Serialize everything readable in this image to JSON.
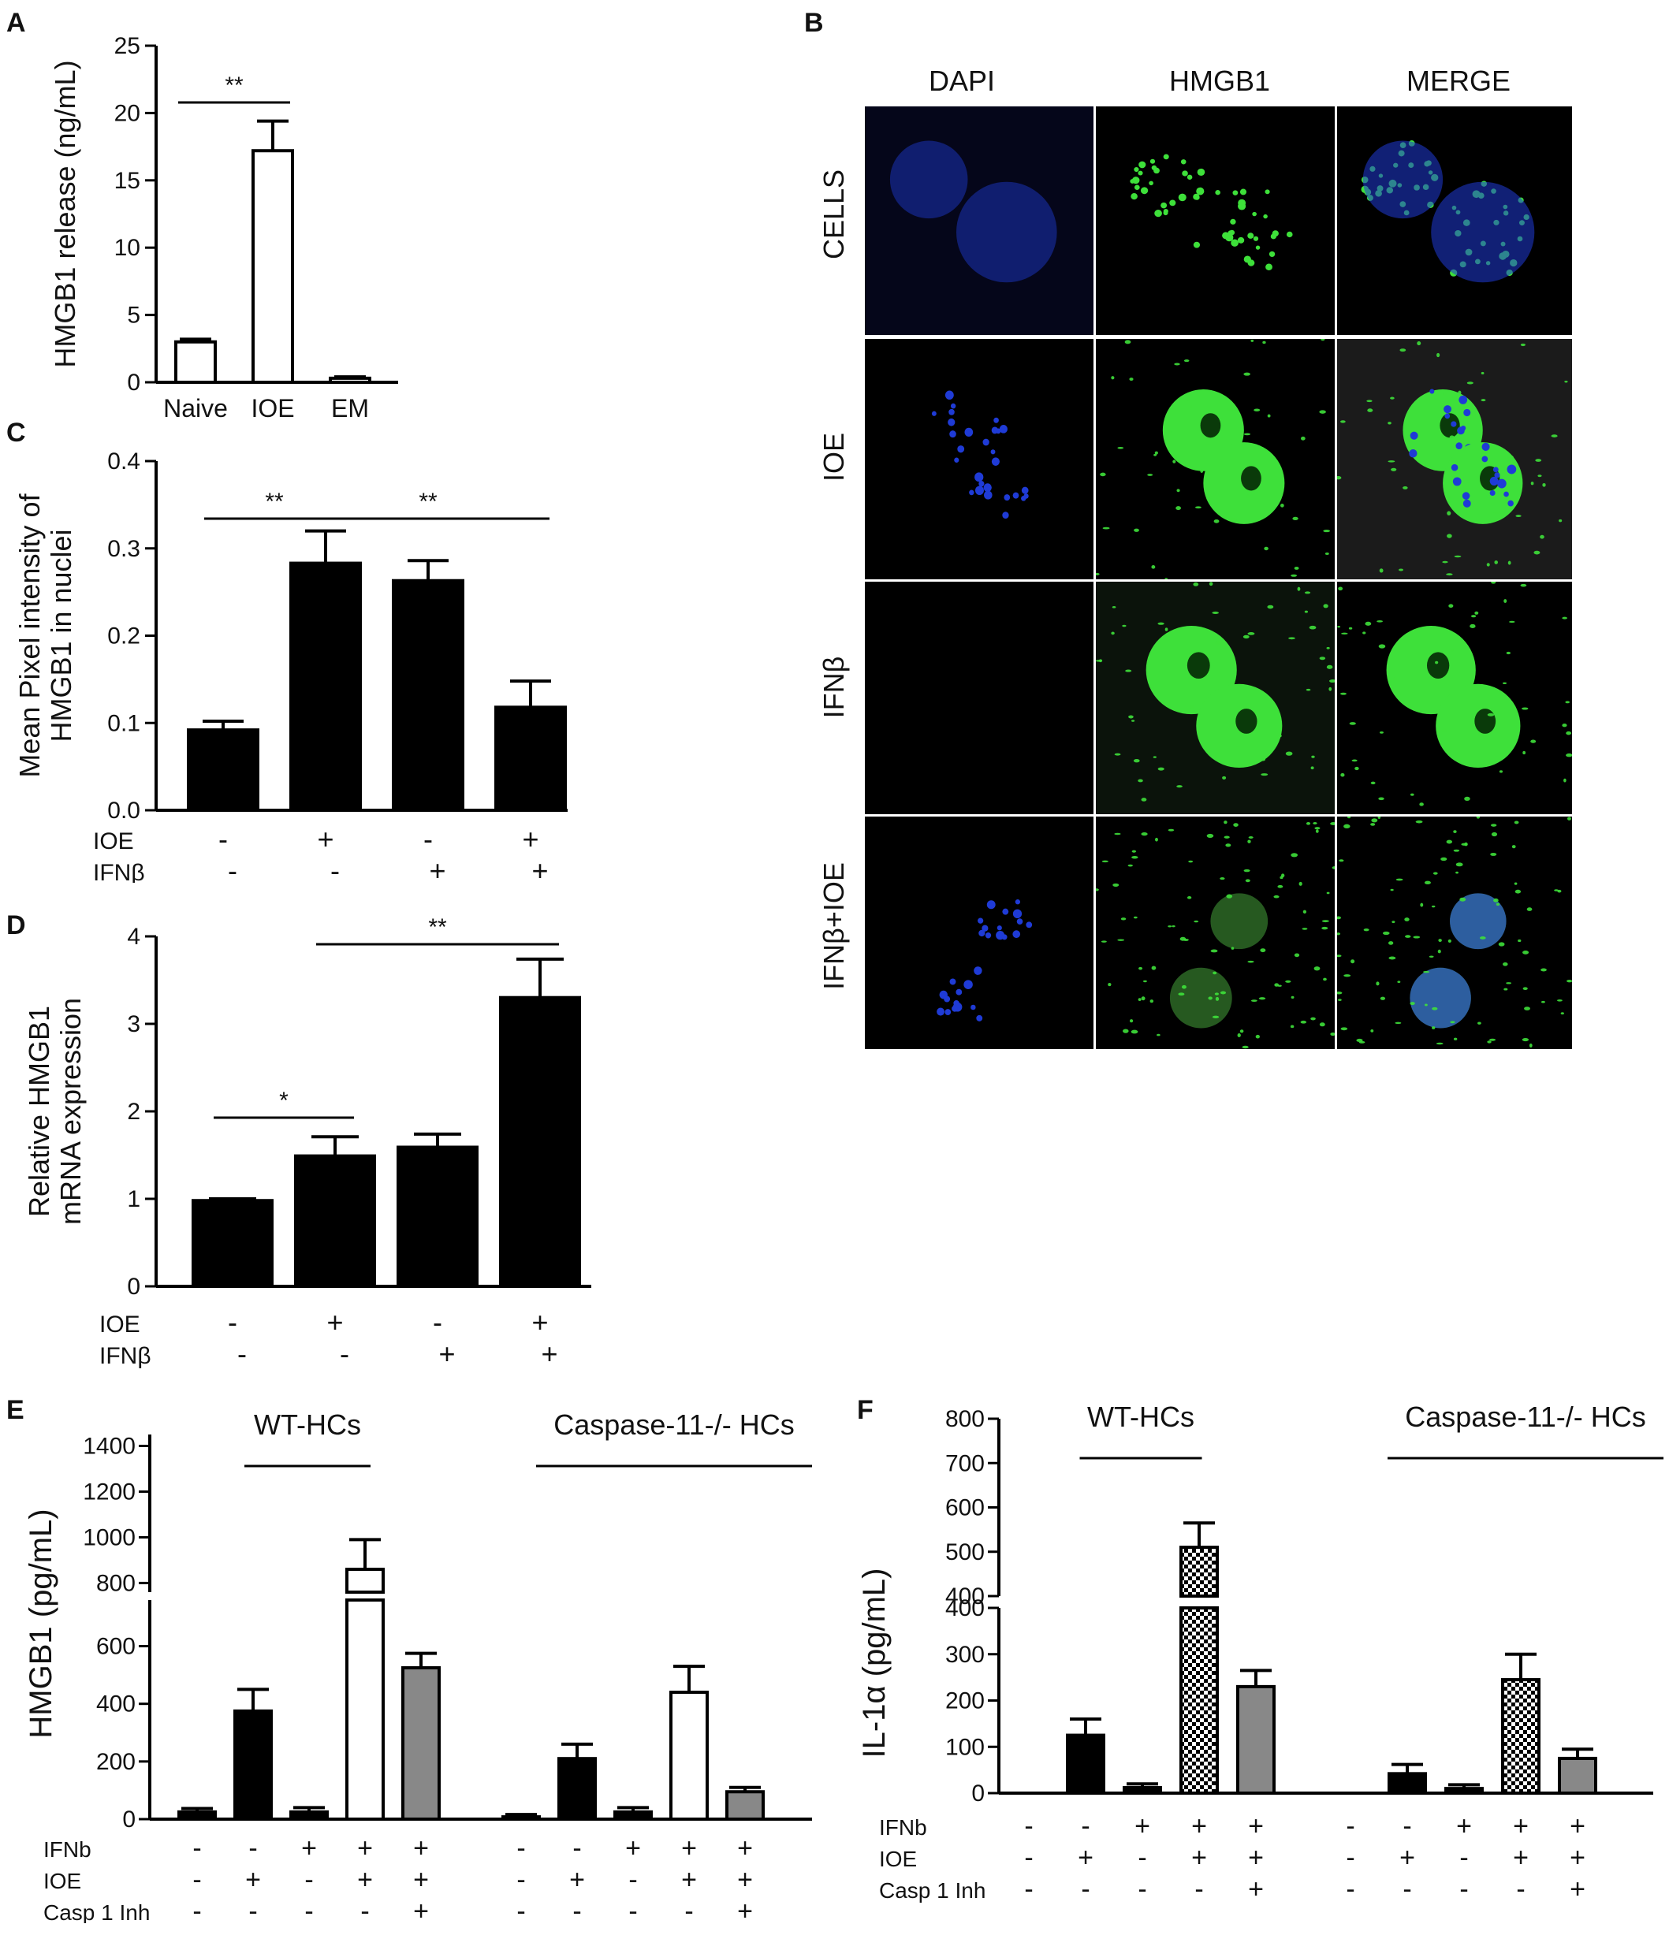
{
  "panel_letters": {
    "A": "A",
    "B": "B",
    "C": "C",
    "D": "D",
    "E": "E",
    "F": "F"
  },
  "microscopy": {
    "column_headers": [
      "DAPI",
      "HMGB1",
      "MERGE"
    ],
    "row_labels": [
      "CELLS",
      "IOE",
      "IFNβ",
      "IFNβ+IOE"
    ],
    "colors": {
      "dapi": "#1f3bd6",
      "hmgb1": "#3ee03a"
    }
  },
  "chart_data": [
    {
      "panel": "A",
      "type": "bar",
      "categories": [
        "Naive",
        "IOE",
        "EM"
      ],
      "values": [
        3.0,
        17.2,
        0.3
      ],
      "errors": [
        0.2,
        2.2,
        0.1
      ],
      "ylabel": "HMGB1 release (ng/mL)",
      "ylim": [
        0,
        25
      ],
      "yticks": [
        "0",
        "5",
        "10",
        "15",
        "20",
        "25"
      ],
      "fill": "#ffffff",
      "significance": [
        {
          "from": 0,
          "to": 1,
          "label": "**"
        }
      ]
    },
    {
      "panel": "C",
      "type": "bar",
      "categories": [
        "",
        "",
        "",
        ""
      ],
      "values": [
        0.092,
        0.283,
        0.263,
        0.118
      ],
      "errors": [
        0.01,
        0.037,
        0.023,
        0.03
      ],
      "ylabel_lines": [
        "Mean Pixel intensity of",
        "HMGB1 in nuclei"
      ],
      "ylim": [
        0,
        0.4
      ],
      "yticks": [
        "0.0",
        "0.1",
        "0.2",
        "0.3",
        "0.4"
      ],
      "fill": "#000000",
      "conditions": [
        {
          "name": "IOE",
          "values": [
            "-",
            "+",
            "-",
            "+"
          ]
        },
        {
          "name": "IFNβ",
          "values": [
            "-",
            "-",
            "+",
            "+"
          ]
        }
      ],
      "significance": [
        {
          "from": 0,
          "to": 1,
          "label": "**"
        },
        {
          "from": 1,
          "to": 3,
          "label": "**"
        }
      ]
    },
    {
      "panel": "D",
      "type": "bar",
      "categories": [
        "",
        "",
        "",
        ""
      ],
      "values": [
        0.98,
        1.49,
        1.59,
        3.3
      ],
      "errors": [
        0.02,
        0.22,
        0.15,
        0.44
      ],
      "ylabel_lines": [
        "Relative HMGB1",
        "mRNA expression"
      ],
      "ylim": [
        0,
        4
      ],
      "yticks": [
        "0",
        "1",
        "2",
        "3",
        "4"
      ],
      "fill": "#000000",
      "conditions": [
        {
          "name": "IOE",
          "values": [
            "-",
            "+",
            "-",
            "+"
          ]
        },
        {
          "name": "IFNβ",
          "values": [
            "-",
            "-",
            "+",
            "+"
          ]
        }
      ],
      "significance": [
        {
          "from": 0,
          "to": 1,
          "label": "*"
        },
        {
          "from": 1,
          "to": 3,
          "label": "**"
        }
      ]
    },
    {
      "panel": "E",
      "type": "bar",
      "ylabel": "HMGB1 (pg/mL)",
      "axis_break": true,
      "lower_range": [
        0,
        760
      ],
      "lower_ticks": [
        "0",
        "200",
        "400",
        "600"
      ],
      "upper_range": [
        760,
        1450
      ],
      "upper_ticks": [
        "800",
        "1000",
        "1200",
        "1400"
      ],
      "group_labels": [
        "WT-HCs",
        "Caspase-11-/- HCs"
      ],
      "values": [
        25,
        375,
        25,
        860,
        525,
        8,
        210,
        25,
        440,
        95
      ],
      "errors": [
        12,
        75,
        15,
        130,
        50,
        8,
        50,
        15,
        90,
        15
      ],
      "fills": [
        "black",
        "black",
        "black",
        "white",
        "gray",
        "black",
        "black",
        "black",
        "white",
        "gray"
      ],
      "conditions": [
        {
          "name": "IFNb",
          "values": [
            "-",
            "-",
            "+",
            "+",
            "+",
            "-",
            "-",
            "+",
            "+",
            "+"
          ]
        },
        {
          "name": "IOE",
          "values": [
            "-",
            "+",
            "-",
            "+",
            "+",
            "-",
            "+",
            "-",
            "+",
            "+"
          ]
        },
        {
          "name": "Casp 1 Inh",
          "values": [
            "-",
            "-",
            "-",
            "-",
            "+",
            "-",
            "-",
            "-",
            "-",
            "+"
          ]
        }
      ]
    },
    {
      "panel": "F",
      "type": "bar",
      "ylabel": "IL-1α (pg/mL)",
      "axis_break": true,
      "lower_range": [
        0,
        400
      ],
      "lower_ticks": [
        "0",
        "100",
        "200",
        "300",
        "400"
      ],
      "upper_range": [
        400,
        800
      ],
      "upper_ticks": [
        "400",
        "500",
        "600",
        "700",
        "800"
      ],
      "group_labels": [
        "WT-HCs",
        "Caspase-11-/- HCs"
      ],
      "values": [
        0,
        125,
        12,
        510,
        230,
        0,
        42,
        10,
        245,
        75
      ],
      "errors": [
        0,
        35,
        8,
        55,
        35,
        0,
        20,
        8,
        55,
        20
      ],
      "fills": [
        "none",
        "black",
        "black",
        "checker",
        "gray",
        "none",
        "black",
        "black",
        "checker",
        "gray"
      ],
      "conditions": [
        {
          "name": "IFNb",
          "values": [
            "-",
            "-",
            "+",
            "+",
            "+",
            "-",
            "-",
            "+",
            "+",
            "+"
          ]
        },
        {
          "name": "IOE",
          "values": [
            "-",
            "+",
            "-",
            "+",
            "+",
            "-",
            "+",
            "-",
            "+",
            "+"
          ]
        },
        {
          "name": "Casp 1 Inh",
          "values": [
            "-",
            "-",
            "-",
            "-",
            "+",
            "-",
            "-",
            "-",
            "-",
            "+"
          ]
        }
      ]
    }
  ]
}
